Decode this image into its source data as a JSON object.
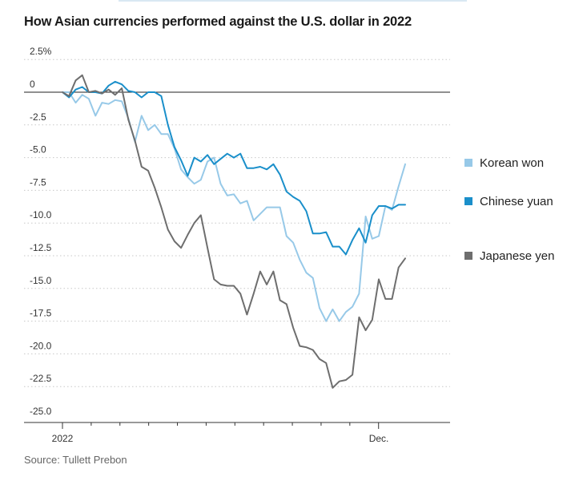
{
  "title": "How Asian currencies performed against the U.S. dollar in 2022",
  "source": "Source: Tullett Prebon",
  "chart_data": {
    "type": "line",
    "title": "How Asian currencies performed against the U.S. dollar in 2022",
    "ylim": [
      -25,
      2.5
    ],
    "y_ticks": [
      {
        "value": 2.5,
        "label": "2.5%"
      },
      {
        "value": 0,
        "label": "0"
      },
      {
        "value": -2.5,
        "label": "-2.5"
      },
      {
        "value": -5,
        "label": "-5.0"
      },
      {
        "value": -7.5,
        "label": "-7.5"
      },
      {
        "value": -10,
        "label": "-10.0"
      },
      {
        "value": -12.5,
        "label": "-12.5"
      },
      {
        "value": -15,
        "label": "-15.0"
      },
      {
        "value": -17.5,
        "label": "-17.5"
      },
      {
        "value": -20,
        "label": "-20.0"
      },
      {
        "value": -22.5,
        "label": "-22.5"
      },
      {
        "value": -25,
        "label": "-25.0"
      }
    ],
    "x_tick_labels": [
      {
        "week": 0,
        "label": "2022"
      },
      {
        "week": 48,
        "label": "Dec."
      }
    ],
    "grid": true,
    "legend_position": "right",
    "series": [
      {
        "name": "Korean won",
        "color": "#97c9e8",
        "week": [
          0,
          1,
          2,
          3,
          4,
          5,
          6,
          7,
          8,
          9,
          10,
          11,
          12,
          13,
          14,
          15,
          16,
          17,
          18,
          19,
          20,
          21,
          22,
          23,
          24,
          25,
          26,
          27,
          28,
          29,
          30,
          31,
          32,
          33,
          34,
          35,
          36,
          37,
          38,
          39,
          40,
          41,
          42,
          43,
          44,
          45,
          46,
          47,
          48,
          49,
          50,
          51,
          52
        ],
        "values": [
          0,
          0,
          -0.8,
          -0.2,
          -0.5,
          -1.8,
          -0.8,
          -0.9,
          -0.6,
          -0.7,
          -2.0,
          -3.8,
          -1.8,
          -2.9,
          -2.5,
          -3.2,
          -3.2,
          -4.3,
          -5.9,
          -6.5,
          -7.0,
          -6.7,
          -5.3,
          -5.0,
          -7.0,
          -7.9,
          -7.8,
          -8.5,
          -8.3,
          -9.8,
          -9.3,
          -8.8,
          -8.8,
          -8.8,
          -11.0,
          -11.5,
          -12.8,
          -13.8,
          -14.2,
          -16.5,
          -17.5,
          -16.6,
          -17.5,
          -16.8,
          -16.4,
          -15.4,
          -9.5,
          -11.2,
          -11.0,
          -8.7,
          -9.0,
          -7.2,
          -5.5
        ]
      },
      {
        "name": "Chinese yuan",
        "color": "#1a8fca",
        "week": [
          0,
          1,
          2,
          3,
          4,
          5,
          6,
          7,
          8,
          9,
          10,
          11,
          12,
          13,
          14,
          15,
          16,
          17,
          18,
          19,
          20,
          21,
          22,
          23,
          24,
          25,
          26,
          27,
          28,
          29,
          30,
          31,
          32,
          33,
          34,
          35,
          36,
          37,
          38,
          39,
          40,
          41,
          42,
          43,
          44,
          45,
          46,
          47,
          48,
          49,
          50,
          51,
          52
        ],
        "values": [
          0,
          -0.4,
          0.2,
          0.4,
          0,
          0,
          -0.1,
          0.5,
          0.8,
          0.6,
          0.1,
          0,
          -0.4,
          0,
          0,
          -0.3,
          -2.5,
          -4.2,
          -5.2,
          -6.4,
          -5.0,
          -5.3,
          -4.8,
          -5.5,
          -5.1,
          -4.7,
          -5.0,
          -4.7,
          -5.8,
          -5.8,
          -5.7,
          -5.9,
          -5.5,
          -6.3,
          -7.6,
          -8.0,
          -8.3,
          -9.1,
          -10.8,
          -10.8,
          -10.7,
          -11.8,
          -11.8,
          -12.4,
          -11.3,
          -10.4,
          -11.5,
          -9.4,
          -8.7,
          -8.7,
          -8.9,
          -8.6,
          -8.6
        ]
      },
      {
        "name": "Japanese yen",
        "color": "#6e6e6e",
        "week": [
          0,
          1,
          2,
          3,
          4,
          5,
          6,
          7,
          8,
          9,
          10,
          11,
          12,
          13,
          14,
          15,
          16,
          17,
          18,
          19,
          20,
          21,
          22,
          23,
          24,
          25,
          26,
          27,
          28,
          29,
          30,
          31,
          32,
          33,
          34,
          35,
          36,
          37,
          38,
          39,
          40,
          41,
          42,
          43,
          44,
          45,
          46,
          47,
          48,
          49,
          50,
          51,
          52
        ],
        "values": [
          0,
          -0.3,
          0.9,
          1.3,
          0,
          0.1,
          -0.1,
          0.2,
          -0.2,
          0.3,
          -2.1,
          -3.7,
          -5.7,
          -6.0,
          -7.3,
          -8.8,
          -10.5,
          -11.4,
          -11.9,
          -10.9,
          -10.0,
          -9.4,
          -11.9,
          -14.3,
          -14.7,
          -14.8,
          -14.8,
          -15.4,
          -17.0,
          -15.4,
          -13.7,
          -14.7,
          -13.7,
          -15.9,
          -16.2,
          -18.0,
          -19.4,
          -19.5,
          -19.7,
          -20.4,
          -20.7,
          -22.6,
          -22.1,
          -22.0,
          -21.6,
          -17.2,
          -18.2,
          -17.4,
          -14.3,
          -15.8,
          -15.8,
          -13.4,
          -12.7
        ]
      }
    ]
  }
}
